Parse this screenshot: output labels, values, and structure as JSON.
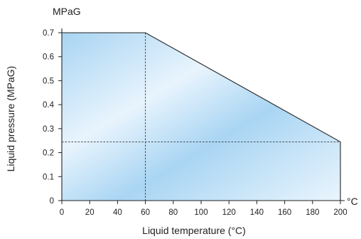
{
  "chart_data": {
    "type": "area",
    "x": [
      0,
      60,
      200
    ],
    "y": [
      0.7,
      0.7,
      0.245
    ],
    "xlim": [
      0,
      200
    ],
    "ylim": [
      0,
      0.7
    ],
    "xticks": [
      0,
      20,
      40,
      60,
      80,
      100,
      120,
      140,
      160,
      180,
      200
    ],
    "yticks": [
      0,
      0.1,
      0.2,
      0.3,
      0.4,
      0.5,
      0.6,
      0.7
    ],
    "xtick_labels": [
      "0",
      "20",
      "40",
      "60",
      "80",
      "100",
      "120",
      "140",
      "160",
      "180",
      "200"
    ],
    "ytick_labels": [
      "0",
      "0.1",
      "0.2",
      "0.3",
      "0.4",
      "0.5",
      "0.6",
      "0.7"
    ],
    "xlabel": "Liquid temperature (°C)",
    "ylabel": "Liquid pressure (MPaG)",
    "x_unit": "°C",
    "y_unit": "MPaG",
    "reference_lines": {
      "x": 60,
      "y": 0.245
    },
    "grid": false,
    "fill_colors": [
      "#a8d4f2",
      "#e4f2fc"
    ],
    "line_color": "#222222"
  }
}
